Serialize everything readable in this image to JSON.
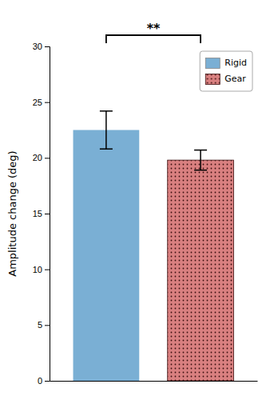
{
  "chart_data": {
    "type": "bar",
    "categories": [
      "Rigid",
      "Gear"
    ],
    "values": [
      22.5,
      19.8
    ],
    "errors": [
      1.7,
      0.9
    ],
    "colors": [
      "#7aafd4",
      "#d98080"
    ],
    "ylabel": "Amplitude change (deg)",
    "ylim": [
      0,
      30
    ],
    "yticks": [
      0,
      5,
      10,
      15,
      20,
      25,
      30
    ],
    "annotations": [
      "**"
    ],
    "legend": "upper right",
    "tick_labels": "y"
  }
}
